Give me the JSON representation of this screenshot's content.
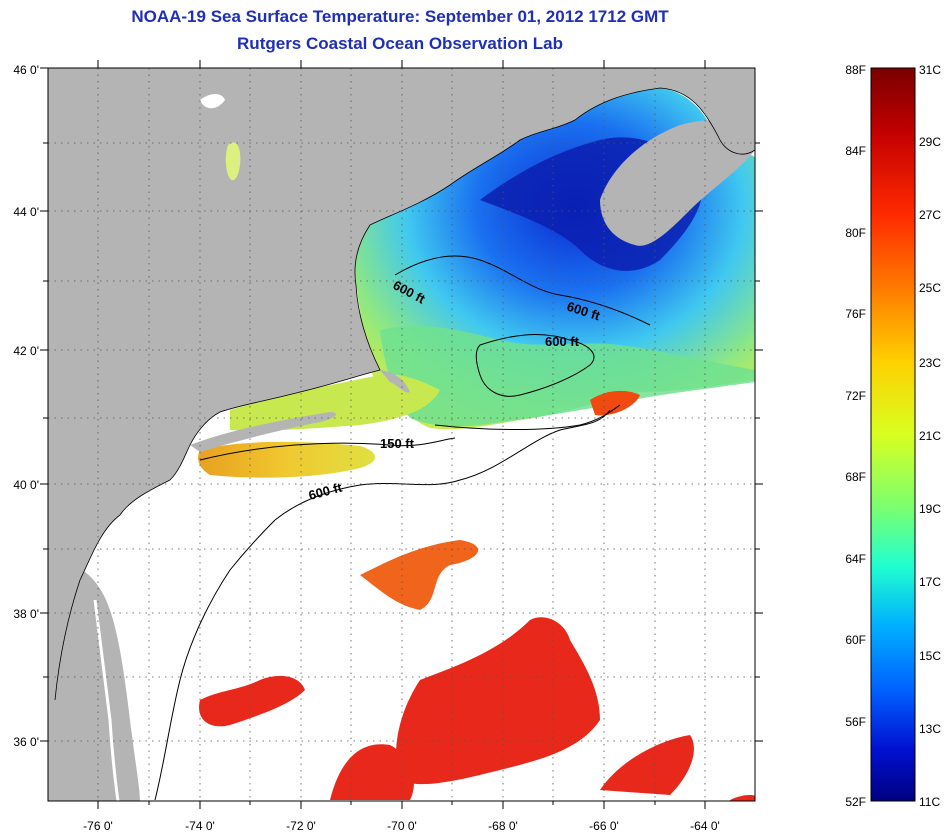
{
  "header": {
    "title": "NOAA-19 Sea Surface Temperature:  September 01, 2012 1712 GMT",
    "subtitle": "Rutgers Coastal Ocean Observation Lab"
  },
  "map": {
    "lat_labels": [
      "46 0'",
      "44 0'",
      "42 0'",
      "40 0'",
      "38 0'",
      "36 0'"
    ],
    "lon_labels": [
      "-76 0'",
      "-74 0'",
      "-72 0'",
      "-70 0'",
      "-68 0'",
      "-66 0'",
      "-64 0'"
    ],
    "contour_labels": [
      "600 ft",
      "600 ft",
      "600 ft",
      "150 ft",
      "600 ft"
    ],
    "colors": {
      "land": "#b4b4b4",
      "ocean_nodata": "#ffffff",
      "cold": "#0a1a9a",
      "warm": "#c8141e"
    }
  },
  "colorbar": {
    "fahrenheit_labels": [
      "88F",
      "84F",
      "80F",
      "76F",
      "72F",
      "68F",
      "64F",
      "60F",
      "56F",
      "52F"
    ],
    "celsius_labels": [
      "31C",
      "29C",
      "27C",
      "25C",
      "23C",
      "21C",
      "19C",
      "17C",
      "15C",
      "13C",
      "11C"
    ],
    "stops": [
      "#7a0000",
      "#c40000",
      "#ff2a00",
      "#ff7a00",
      "#ffd000",
      "#d8ff20",
      "#7aff70",
      "#20ffd0",
      "#00b0ff",
      "#0060ff",
      "#0010d0",
      "#000080"
    ]
  }
}
